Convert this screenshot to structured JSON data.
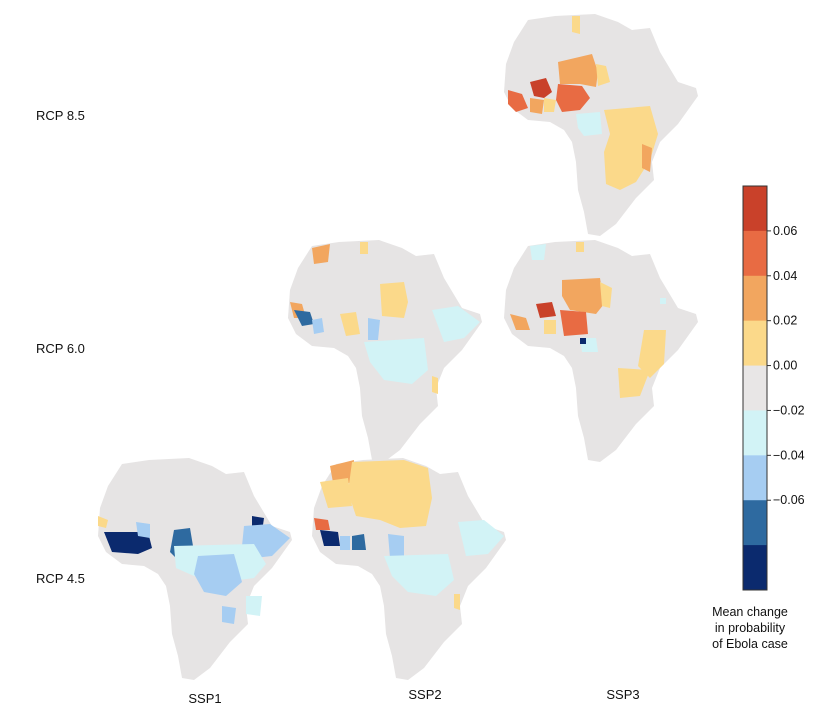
{
  "row_labels": [
    "RCP 8.5",
    "RCP 6.0",
    "RCP 4.5"
  ],
  "col_labels": [
    "SSP1",
    "SSP2",
    "SSP3"
  ],
  "panels": {
    "ssp3_rcp85": {
      "present": true
    },
    "ssp2_rcp60": {
      "present": true
    },
    "ssp3_rcp60": {
      "present": true
    },
    "ssp1_rcp45": {
      "present": true
    },
    "ssp2_rcp45": {
      "present": true
    }
  },
  "legend": {
    "caption": [
      "Mean change",
      "in probability",
      "of Ebola case"
    ],
    "ticks": [
      "0.06",
      "0.04",
      "0.02",
      "0.00",
      "−0.02",
      "−0.04",
      "−0.06"
    ],
    "colors": [
      "#c9412a",
      "#e86b43",
      "#f2a65f",
      "#fbd98a",
      "#e8e6e6",
      "#d2f3f6",
      "#a6cdf2",
      "#2e6aa0",
      "#0b2a6e"
    ]
  },
  "colors": {
    "land": "#e6e4e4",
    "pos_high": "#c9412a",
    "pos_mid": "#e86b43",
    "pos_low": "#f2a65f",
    "pos_min": "#fbd98a",
    "neg_min": "#d2f3f6",
    "neg_low": "#a6cdf2",
    "neg_mid": "#2e6aa0",
    "neg_high": "#0b2a6e"
  }
}
